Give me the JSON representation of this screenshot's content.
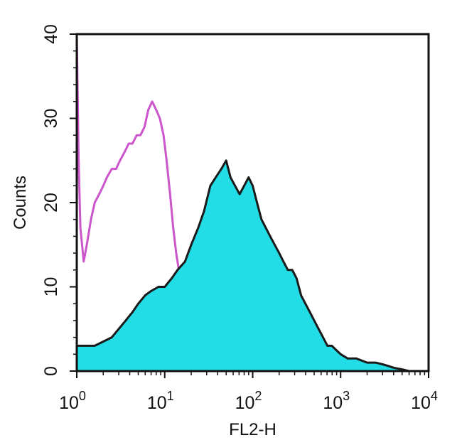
{
  "chart_data": {
    "type": "area",
    "xlabel": "FL2-H",
    "ylabel": "Counts",
    "x_scale": "log",
    "xlim": [
      1,
      10000
    ],
    "ylim": [
      0,
      40
    ],
    "x_ticks": [
      {
        "base": "10",
        "exp": "0"
      },
      {
        "base": "10",
        "exp": "1"
      },
      {
        "base": "10",
        "exp": "2"
      },
      {
        "base": "10",
        "exp": "3"
      },
      {
        "base": "10",
        "exp": "4"
      }
    ],
    "y_ticks": [
      "0",
      "10",
      "20",
      "30",
      "40"
    ],
    "series": [
      {
        "color": "#cc55cc",
        "fill": "none",
        "x": [
          1.0,
          1.05,
          1.1,
          1.2,
          1.3,
          1.45,
          1.6,
          1.8,
          2.0,
          2.2,
          2.5,
          2.8,
          3.1,
          3.5,
          3.9,
          4.3,
          4.8,
          5.3,
          5.9,
          6.5,
          7.2,
          8.0,
          8.8,
          9.7,
          10.5,
          11.5,
          12.5,
          13.5,
          15.0,
          16.5,
          18.0,
          20.0,
          22.0,
          25.0,
          28.0,
          32.0,
          36.0,
          40.0,
          45.0,
          50.0
        ],
        "y": [
          40,
          25,
          17,
          13,
          15,
          18,
          20,
          21,
          22,
          23,
          24,
          24,
          25,
          26,
          27,
          27,
          28,
          28,
          29,
          31,
          32,
          31,
          30,
          28,
          25,
          21,
          17,
          14,
          11,
          8,
          6,
          5,
          4,
          3,
          2,
          1.5,
          1,
          0.5,
          0.2,
          0
        ]
      },
      {
        "color": "#1a1a1a",
        "fill": "#22dde6",
        "x": [
          1.0,
          1.3,
          1.6,
          2.0,
          2.5,
          3.0,
          3.6,
          4.3,
          5.0,
          6.0,
          7.0,
          8.5,
          10,
          12,
          14,
          17,
          20,
          24,
          28,
          33,
          38,
          44,
          50,
          56,
          63,
          71,
          80,
          90,
          100,
          112,
          126,
          141,
          158,
          178,
          200,
          224,
          251,
          282,
          316,
          355,
          398,
          447,
          501,
          562,
          631,
          708,
          794,
          891,
          1000,
          1200,
          1500,
          2000,
          2500,
          3000,
          3500,
          4000,
          5000,
          6000
        ],
        "y": [
          3,
          3,
          3,
          3.5,
          4,
          5,
          6,
          7,
          8,
          9,
          9.5,
          10,
          10,
          11,
          12,
          13,
          15,
          17,
          19,
          22,
          23,
          24,
          25,
          23,
          22,
          21,
          22,
          23,
          22,
          20,
          18,
          17,
          16,
          15,
          14,
          13,
          12,
          12,
          11,
          9,
          8,
          7,
          6,
          5,
          4,
          3,
          3,
          2.5,
          2,
          1.5,
          1.5,
          1,
          1,
          0.8,
          0.6,
          0.4,
          0.2,
          0
        ]
      }
    ]
  }
}
